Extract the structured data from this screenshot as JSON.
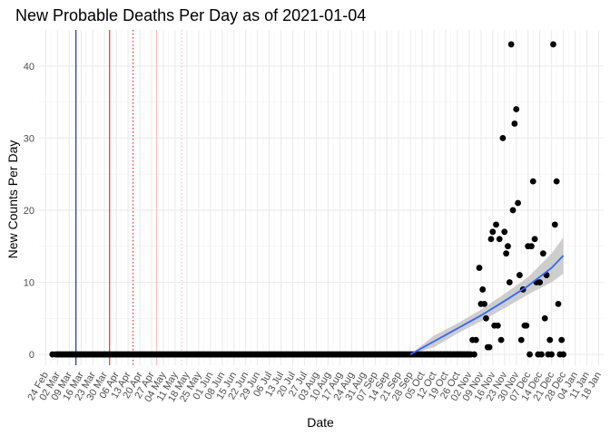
{
  "chart_data": {
    "type": "scatter",
    "title": "New Probable Deaths Per Day as of 2021-01-04",
    "xlabel": "Date",
    "ylabel": "New Counts Per Day",
    "x_range": [
      "2020-02-20",
      "2021-01-21"
    ],
    "ylim": [
      -1.5,
      45
    ],
    "y_ticks": [
      0,
      10,
      20,
      30,
      40
    ],
    "x_ticks": [
      "2020-02-24",
      "2020-03-02",
      "2020-03-09",
      "2020-03-16",
      "2020-03-23",
      "2020-03-30",
      "2020-04-06",
      "2020-04-13",
      "2020-04-20",
      "2020-04-27",
      "2020-05-04",
      "2020-05-11",
      "2020-05-18",
      "2020-05-25",
      "2020-06-01",
      "2020-06-08",
      "2020-06-15",
      "2020-06-22",
      "2020-06-29",
      "2020-07-06",
      "2020-07-13",
      "2020-07-20",
      "2020-07-27",
      "2020-08-03",
      "2020-08-10",
      "2020-08-17",
      "2020-08-24",
      "2020-08-31",
      "2020-09-07",
      "2020-09-14",
      "2020-09-21",
      "2020-09-28",
      "2020-10-05",
      "2020-10-12",
      "2020-10-19",
      "2020-10-26",
      "2020-11-02",
      "2020-11-09",
      "2020-11-16",
      "2020-11-23",
      "2020-11-30",
      "2020-12-07",
      "2020-12-14",
      "2020-12-21",
      "2020-12-28",
      "2021-01-04",
      "2021-01-11",
      "2021-01-18"
    ],
    "x_tick_labels": [
      "24 Feb",
      "02 Mar",
      "09 Mar",
      "16 Mar",
      "23 Mar",
      "30 Mar",
      "06 Apr",
      "13 Apr",
      "20 Apr",
      "27 Apr",
      "04 May",
      "11 May",
      "18 May",
      "25 May",
      "01 Jun",
      "08 Jun",
      "15 Jun",
      "22 Jun",
      "29 Jun",
      "06 Jul",
      "13 Jul",
      "20 Jul",
      "27 Jul",
      "03 Aug",
      "10 Aug",
      "17 Aug",
      "24 Aug",
      "31 Aug",
      "07 Sep",
      "14 Sep",
      "21 Sep",
      "28 Sep",
      "05 Oct",
      "12 Oct",
      "19 Oct",
      "26 Oct",
      "02 Nov",
      "09 Nov",
      "16 Nov",
      "23 Nov",
      "30 Nov",
      "07 Dec",
      "14 Dec",
      "21 Dec",
      "28 Dec",
      "04 Jan",
      "11 Jan",
      "18 Jan"
    ],
    "grid": true,
    "vlines": [
      {
        "x": "2020-03-13",
        "color": "#00008b",
        "style": "solid"
      },
      {
        "x": "2020-04-02",
        "color": "#ff0000",
        "style": "solid"
      },
      {
        "x": "2020-04-16",
        "color": "#ff0000",
        "style": "dotted"
      },
      {
        "x": "2020-04-30",
        "color": "#ffb6c1",
        "style": "solid"
      },
      {
        "x": "2020-05-15",
        "color": "#ffb6c1",
        "style": "dotted"
      }
    ],
    "zero_run": {
      "start": "2020-03-01",
      "end": "2020-11-03",
      "value": 0
    },
    "points": [
      [
        "2020-02-28",
        0
      ],
      [
        "2020-10-08",
        0
      ],
      [
        "2020-10-10",
        0
      ],
      [
        "2020-10-12",
        0
      ],
      [
        "2020-10-14",
        0
      ],
      [
        "2020-10-16",
        0
      ],
      [
        "2020-10-18",
        0
      ],
      [
        "2020-10-20",
        0
      ],
      [
        "2020-10-22",
        0
      ],
      [
        "2020-10-24",
        0
      ],
      [
        "2020-10-26",
        0
      ],
      [
        "2020-10-28",
        0
      ],
      [
        "2020-10-30",
        0
      ],
      [
        "2020-11-01",
        0
      ],
      [
        "2020-11-04",
        2
      ],
      [
        "2020-11-05",
        0
      ],
      [
        "2020-11-06",
        2
      ],
      [
        "2020-11-08",
        12
      ],
      [
        "2020-11-09",
        7
      ],
      [
        "2020-11-10",
        9
      ],
      [
        "2020-11-11",
        7
      ],
      [
        "2020-11-12",
        5
      ],
      [
        "2020-11-13",
        1
      ],
      [
        "2020-11-14",
        1
      ],
      [
        "2020-11-15",
        16
      ],
      [
        "2020-11-16",
        17
      ],
      [
        "2020-11-17",
        4
      ],
      [
        "2020-11-18",
        18
      ],
      [
        "2020-11-19",
        4
      ],
      [
        "2020-11-20",
        16
      ],
      [
        "2020-11-21",
        2
      ],
      [
        "2020-11-22",
        30
      ],
      [
        "2020-11-23",
        17
      ],
      [
        "2020-11-24",
        14
      ],
      [
        "2020-11-25",
        15
      ],
      [
        "2020-11-26",
        10
      ],
      [
        "2020-11-27",
        43
      ],
      [
        "2020-11-28",
        20
      ],
      [
        "2020-11-29",
        32
      ],
      [
        "2020-11-30",
        34
      ],
      [
        "2020-12-01",
        21
      ],
      [
        "2020-12-02",
        11
      ],
      [
        "2020-12-03",
        2
      ],
      [
        "2020-12-04",
        9
      ],
      [
        "2020-12-05",
        4
      ],
      [
        "2020-12-06",
        4
      ],
      [
        "2020-12-07",
        15
      ],
      [
        "2020-12-08",
        0
      ],
      [
        "2020-12-09",
        15
      ],
      [
        "2020-12-10",
        24
      ],
      [
        "2020-12-11",
        16
      ],
      [
        "2020-12-12",
        10
      ],
      [
        "2020-12-13",
        0
      ],
      [
        "2020-12-14",
        10
      ],
      [
        "2020-12-15",
        0
      ],
      [
        "2020-12-16",
        14
      ],
      [
        "2020-12-17",
        5
      ],
      [
        "2020-12-18",
        11
      ],
      [
        "2020-12-19",
        0
      ],
      [
        "2020-12-20",
        2
      ],
      [
        "2020-12-21",
        0
      ],
      [
        "2020-12-22",
        43
      ],
      [
        "2020-12-23",
        18
      ],
      [
        "2020-12-24",
        24
      ],
      [
        "2020-12-25",
        7
      ],
      [
        "2020-12-26",
        0
      ],
      [
        "2020-12-27",
        2
      ],
      [
        "2020-12-28",
        0
      ]
    ],
    "smooth": {
      "color": "#3366ff",
      "band_color": "#bdbdbd",
      "x": [
        "2020-09-28",
        "2020-10-12",
        "2020-10-26",
        "2020-11-09",
        "2020-11-23",
        "2020-12-07",
        "2020-12-21",
        "2020-12-28"
      ],
      "y": [
        0,
        1.8,
        3.6,
        5.4,
        7.4,
        9.5,
        12.0,
        13.7
      ],
      "lower": [
        0,
        1.0,
        2.9,
        4.6,
        6.4,
        8.3,
        10.0,
        11.2
      ],
      "upper": [
        0,
        2.6,
        4.3,
        6.2,
        8.4,
        10.7,
        14.0,
        16.2
      ]
    }
  }
}
